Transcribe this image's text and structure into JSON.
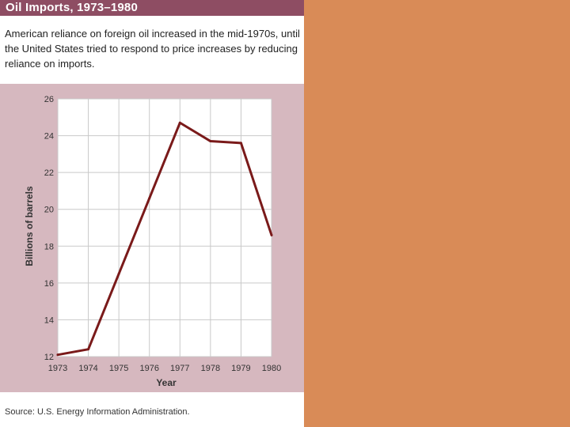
{
  "title": "Oil Imports, 1973–1980",
  "caption": "American reliance on foreign oil increased in the mid-1970s, until the United States tried to respond to price increases by reducing reliance on imports.",
  "source": "Source: U.S. Energy Information Administration.",
  "colors": {
    "title_bar": "#8e4d63",
    "chart_background": "#d6b8bf",
    "plot_background": "#ffffff",
    "line": "#7a1a1a",
    "right_panel": "#d98b57"
  },
  "chart_data": {
    "type": "line",
    "title": "",
    "xlabel": "Year",
    "ylabel": "Billions of barrels",
    "categories": [
      "1973",
      "1974",
      "1975",
      "1976",
      "1977",
      "1978",
      "1979",
      "1980"
    ],
    "x": [
      1973,
      1974,
      1975,
      1976,
      1977,
      1978,
      1979,
      1980
    ],
    "series": [
      {
        "values": [
          12.1,
          12.4,
          16.5,
          20.6,
          24.7,
          23.7,
          23.6,
          18.6
        ]
      }
    ],
    "ylim": [
      12,
      26
    ],
    "yticks": [
      "12",
      "14",
      "16",
      "18",
      "20",
      "22",
      "24",
      "26"
    ],
    "grid": true,
    "legend": "none"
  }
}
